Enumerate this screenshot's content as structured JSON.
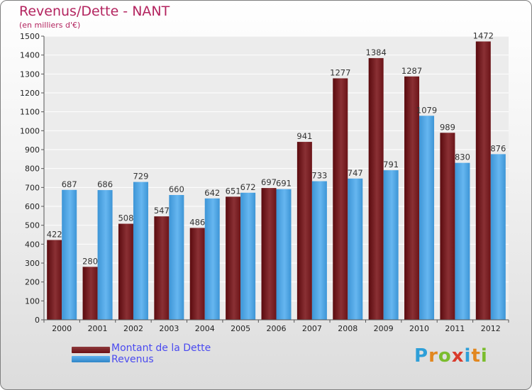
{
  "title": "Revenus/Dette - NANT",
  "subtitle": "(en milliers d'€)",
  "brand": {
    "letters": [
      "P",
      "r",
      "o",
      "x",
      "i",
      "t",
      "i"
    ],
    "colors": [
      "#2e9fd8",
      "#e2871f",
      "#7bbd2e",
      "#d93a2b",
      "#2e9fd8",
      "#e2871f",
      "#7bbd2e"
    ]
  },
  "colors": {
    "dette": "#6b0f14",
    "dette_light": "#8e3a3c",
    "revenus": "#2f86c8",
    "revenus_light": "#5fb0ee"
  },
  "chart_data": {
    "type": "bar",
    "categories": [
      "2000",
      "2001",
      "2002",
      "2003",
      "2004",
      "2005",
      "2006",
      "2007",
      "2008",
      "2009",
      "2010",
      "2011",
      "2012"
    ],
    "series": [
      {
        "name": "Montant de la Dette",
        "values": [
          422,
          280,
          508,
          547,
          486,
          651,
          697,
          941,
          1277,
          1384,
          1287,
          989,
          1472
        ]
      },
      {
        "name": "Revenus",
        "values": [
          687,
          686,
          729,
          660,
          642,
          672,
          691,
          733,
          747,
          791,
          1079,
          830,
          876
        ]
      }
    ],
    "ylim": [
      0,
      1500
    ],
    "yticks": [
      0,
      100,
      200,
      300,
      400,
      500,
      600,
      700,
      800,
      900,
      1000,
      1100,
      1200,
      1300,
      1400,
      1500
    ],
    "grid": true,
    "legend": "bottom-left"
  }
}
